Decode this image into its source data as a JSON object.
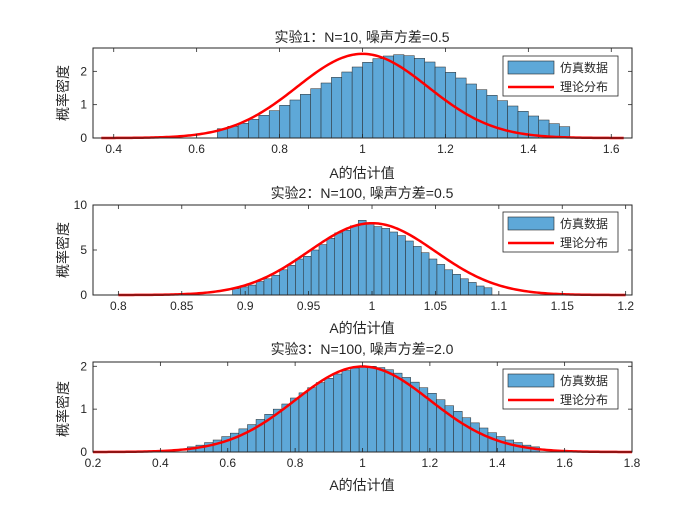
{
  "chart_data": [
    {
      "type": "bar",
      "title": "实验1：N=10, 噪声方差=0.5",
      "xlabel": "A的估计值",
      "ylabel": "概率密度",
      "xlim": [
        0.35,
        1.65
      ],
      "ylim": [
        0,
        2.7
      ],
      "xticks": [
        0.4,
        0.6,
        0.8,
        1.0,
        1.2,
        1.4,
        1.6
      ],
      "xtick_labels": [
        "0.4",
        "0.6",
        "0.8",
        "1",
        "1.2",
        "1.4",
        "1.6"
      ],
      "yticks": [
        0,
        1,
        2
      ],
      "ytick_labels": [
        "0",
        "1",
        "2"
      ],
      "grid": false,
      "legend_position": "top-right",
      "bin_start": 0.65,
      "bin_width": 0.025,
      "histogram": [
        0.28,
        0.35,
        0.44,
        0.56,
        0.68,
        0.82,
        0.98,
        1.14,
        1.31,
        1.48,
        1.65,
        1.82,
        1.98,
        2.13,
        2.27,
        2.38,
        2.46,
        2.5,
        2.47,
        2.39,
        2.28,
        2.13,
        1.97,
        1.8,
        1.62,
        1.45,
        1.28,
        1.12,
        0.96,
        0.8,
        0.66,
        0.54,
        0.43,
        0.34
      ],
      "theory": {
        "mean": 1.0,
        "std": 0.158,
        "xrange": [
          0.37,
          1.63
        ]
      },
      "series": [
        {
          "name": "仿真数据",
          "kind": "histogram",
          "color": "#5ea8d8"
        },
        {
          "name": "理论分布",
          "kind": "line",
          "color": "#ff0000"
        }
      ]
    },
    {
      "type": "bar",
      "title": "实验2：N=100, 噪声方差=0.5",
      "xlabel": "A的估计值",
      "ylabel": "概率密度",
      "xlim": [
        0.78,
        1.205
      ],
      "ylim": [
        0,
        10
      ],
      "xticks": [
        0.8,
        0.85,
        0.9,
        0.95,
        1.0,
        1.05,
        1.1,
        1.15,
        1.2
      ],
      "xtick_labels": [
        "0.8",
        "0.85",
        "0.9",
        "0.95",
        "1",
        "1.05",
        "1.1",
        "1.15",
        "1.2"
      ],
      "yticks": [
        0,
        5,
        10
      ],
      "ytick_labels": [
        "0",
        "5",
        "10"
      ],
      "grid": false,
      "legend_position": "top-right",
      "bin_start": 0.89,
      "bin_width": 0.0062,
      "histogram": [
        0.7,
        0.9,
        1.1,
        1.5,
        1.8,
        2.2,
        2.8,
        3.3,
        4.0,
        4.3,
        5.0,
        5.6,
        6.3,
        6.9,
        7.2,
        7.7,
        8.3,
        7.9,
        7.6,
        7.4,
        7.0,
        6.6,
        6.0,
        5.4,
        4.7,
        4.0,
        3.4,
        2.8,
        2.3,
        1.8,
        1.4,
        1.0,
        0.8
      ],
      "theory": {
        "mean": 1.0,
        "std": 0.05,
        "xrange": [
          0.8,
          1.2
        ]
      },
      "series": [
        {
          "name": "仿真数据",
          "kind": "histogram",
          "color": "#5ea8d8"
        },
        {
          "name": "理论分布",
          "kind": "line",
          "color": "#ff0000"
        }
      ]
    },
    {
      "type": "bar",
      "title": "实验3：N=100, 噪声方差=2.0",
      "xlabel": "A的估计值",
      "ylabel": "概率密度",
      "xlim": [
        0.2,
        1.8
      ],
      "ylim": [
        0,
        2.1
      ],
      "xticks": [
        0.2,
        0.4,
        0.6,
        0.8,
        1.0,
        1.2,
        1.4,
        1.6,
        1.8
      ],
      "xtick_labels": [
        "0.2",
        "0.4",
        "0.6",
        "0.8",
        "1",
        "1.2",
        "1.4",
        "1.6",
        "1.8"
      ],
      "yticks": [
        0,
        1,
        2
      ],
      "ytick_labels": [
        "0",
        "1",
        "2"
      ],
      "grid": false,
      "legend_position": "top-right",
      "bin_start": 0.48,
      "bin_width": 0.0255,
      "histogram": [
        0.12,
        0.16,
        0.22,
        0.28,
        0.36,
        0.44,
        0.54,
        0.64,
        0.76,
        0.88,
        1.0,
        1.12,
        1.26,
        1.38,
        1.5,
        1.62,
        1.72,
        1.82,
        1.9,
        1.96,
        2.0,
        2.0,
        1.97,
        1.92,
        1.84,
        1.74,
        1.63,
        1.5,
        1.37,
        1.22,
        1.08,
        0.95,
        0.8,
        0.68,
        0.56,
        0.45,
        0.36,
        0.28,
        0.22,
        0.16,
        0.12
      ],
      "theory": {
        "mean": 1.0,
        "std": 0.2,
        "xrange": [
          0.2,
          1.8
        ]
      },
      "series": [
        {
          "name": "仿真数据",
          "kind": "histogram",
          "color": "#5ea8d8"
        },
        {
          "name": "理论分布",
          "kind": "line",
          "color": "#ff0000"
        }
      ]
    }
  ]
}
